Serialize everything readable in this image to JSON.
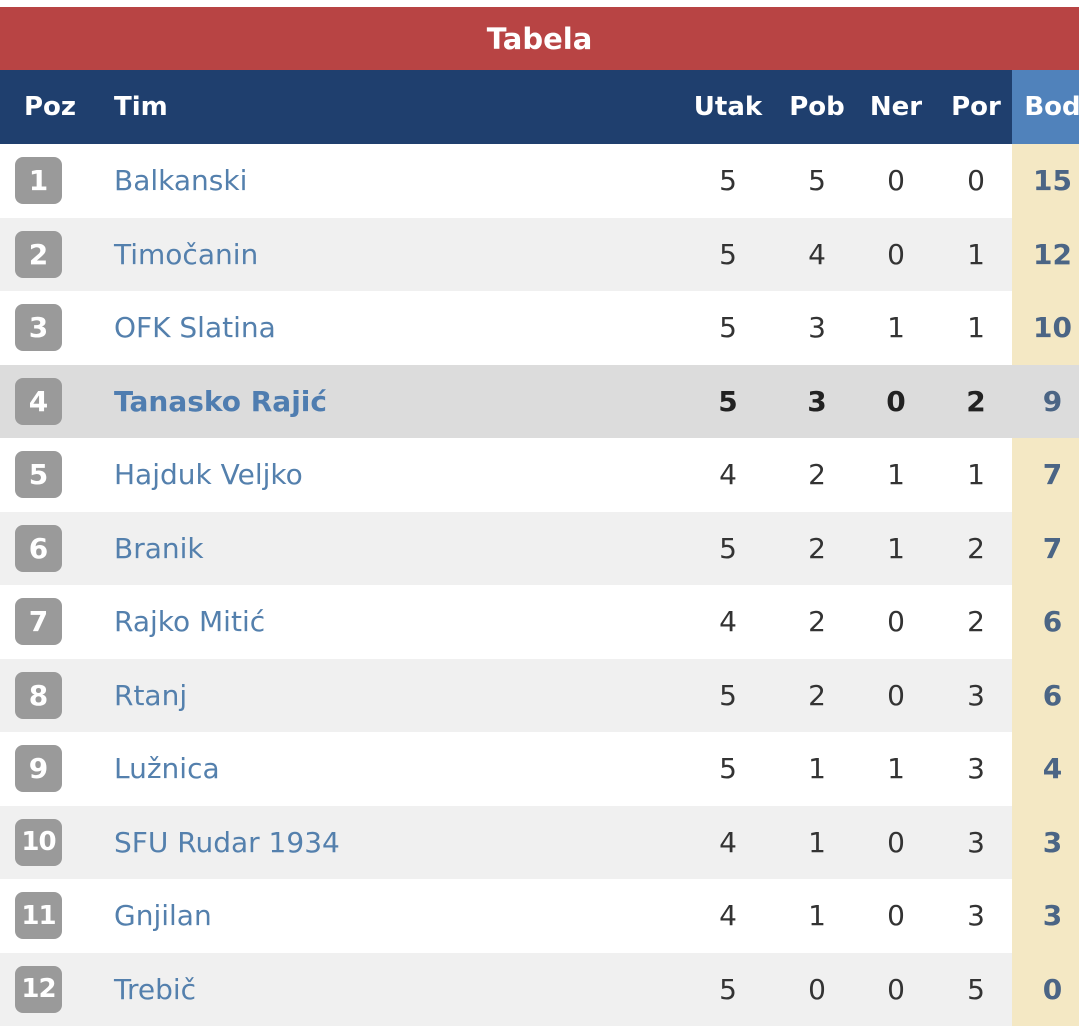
{
  "title": "Tabela",
  "headers": {
    "poz": "Poz",
    "tim": "Tim",
    "utak": "Utak",
    "pob": "Pob",
    "ner": "Ner",
    "por": "Por",
    "bod": "Bod"
  },
  "highlighted_team": "Tanasko Rajić",
  "rows": [
    {
      "poz": "1",
      "tim": "Balkanski",
      "utak": "5",
      "pob": "5",
      "ner": "0",
      "por": "0",
      "bod": "15"
    },
    {
      "poz": "2",
      "tim": "Timočanin",
      "utak": "5",
      "pob": "4",
      "ner": "0",
      "por": "1",
      "bod": "12"
    },
    {
      "poz": "3",
      "tim": "OFK Slatina",
      "utak": "5",
      "pob": "3",
      "ner": "1",
      "por": "1",
      "bod": "10"
    },
    {
      "poz": "4",
      "tim": "Tanasko Rajić",
      "utak": "5",
      "pob": "3",
      "ner": "0",
      "por": "2",
      "bod": "9"
    },
    {
      "poz": "5",
      "tim": "Hajduk Veljko",
      "utak": "4",
      "pob": "2",
      "ner": "1",
      "por": "1",
      "bod": "7"
    },
    {
      "poz": "6",
      "tim": "Branik",
      "utak": "5",
      "pob": "2",
      "ner": "1",
      "por": "2",
      "bod": "7"
    },
    {
      "poz": "7",
      "tim": "Rajko Mitić",
      "utak": "4",
      "pob": "2",
      "ner": "0",
      "por": "2",
      "bod": "6"
    },
    {
      "poz": "8",
      "tim": "Rtanj",
      "utak": "5",
      "pob": "2",
      "ner": "0",
      "por": "3",
      "bod": "6"
    },
    {
      "poz": "9",
      "tim": "Lužnica",
      "utak": "5",
      "pob": "1",
      "ner": "1",
      "por": "3",
      "bod": "4"
    },
    {
      "poz": "10",
      "tim": "SFU Rudar 1934",
      "utak": "4",
      "pob": "1",
      "ner": "0",
      "por": "3",
      "bod": "3"
    },
    {
      "poz": "11",
      "tim": "Gnjilan",
      "utak": "4",
      "pob": "1",
      "ner": "0",
      "por": "3",
      "bod": "3"
    },
    {
      "poz": "12",
      "tim": "Trebič",
      "utak": "5",
      "pob": "0",
      "ner": "0",
      "por": "5",
      "bod": "0"
    }
  ]
}
